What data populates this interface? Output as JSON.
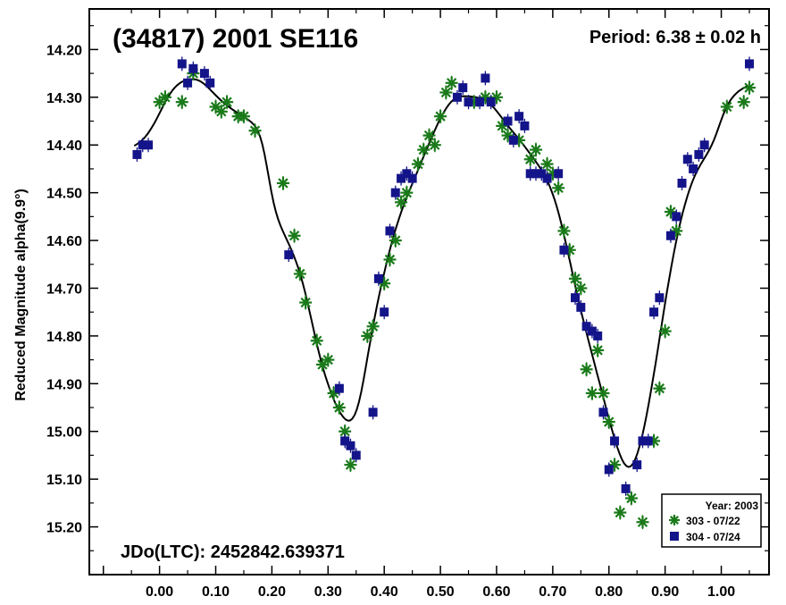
{
  "chart_data": {
    "type": "scatter",
    "title": "(34817) 2001 SE116",
    "period_label": "Period: 6.38 ± 0.02 h",
    "epoch_label": "JDo(LTC): 2452842.639371",
    "ylabel": "Reduced Magnitude alpha(9.9°)",
    "xlabel": "",
    "xlim": [
      -0.125,
      1.085
    ],
    "ylim": [
      14.115,
      15.3
    ],
    "y_inverted": true,
    "grid": false,
    "x_ticks": [
      "0.00",
      "0.10",
      "0.20",
      "0.30",
      "0.40",
      "0.50",
      "0.60",
      "0.70",
      "0.80",
      "0.90",
      "1.00"
    ],
    "y_ticks": [
      "14.20",
      "14.30",
      "14.40",
      "14.50",
      "14.60",
      "14.70",
      "14.80",
      "14.90",
      "15.00",
      "15.10",
      "15.20"
    ],
    "legend": {
      "title": "Year: 2003",
      "position": "bottom-right"
    },
    "colors": {
      "series_green": "#1a7a1a",
      "series_navy": "#14148a",
      "fit_curve": "#000000"
    },
    "series": [
      {
        "name": "303 - 07/22",
        "marker": "asterisk",
        "color": "#1a7a1a",
        "x": [
          0.0,
          0.01,
          0.04,
          0.06,
          0.1,
          0.11,
          0.12,
          0.14,
          0.15,
          0.17,
          0.22,
          0.24,
          0.25,
          0.26,
          0.28,
          0.29,
          0.3,
          0.31,
          0.32,
          0.33,
          0.34,
          0.37,
          0.38,
          0.4,
          0.41,
          0.42,
          0.43,
          0.44,
          0.46,
          0.47,
          0.48,
          0.49,
          0.5,
          0.51,
          0.52,
          0.56,
          0.58,
          0.6,
          0.61,
          0.62,
          0.64,
          0.66,
          0.67,
          0.69,
          0.7,
          0.71,
          0.72,
          0.73,
          0.74,
          0.75,
          0.76,
          0.77,
          0.78,
          0.79,
          0.8,
          0.81,
          0.82,
          0.84,
          0.86,
          0.88,
          0.89,
          0.9,
          0.91,
          0.92,
          1.01,
          1.04,
          1.05
        ],
        "y": [
          14.31,
          14.3,
          14.31,
          14.25,
          14.32,
          14.33,
          14.31,
          14.34,
          14.34,
          14.37,
          14.48,
          14.59,
          14.67,
          14.73,
          14.81,
          14.86,
          14.85,
          14.92,
          14.95,
          15.0,
          15.07,
          14.8,
          14.78,
          14.69,
          14.64,
          14.6,
          14.52,
          14.5,
          14.44,
          14.41,
          14.38,
          14.4,
          14.34,
          14.29,
          14.27,
          14.31,
          14.3,
          14.3,
          14.36,
          14.38,
          14.39,
          14.43,
          14.41,
          14.44,
          14.46,
          14.49,
          14.58,
          14.62,
          14.68,
          14.7,
          14.87,
          14.92,
          14.83,
          14.92,
          14.98,
          15.07,
          15.17,
          15.14,
          15.19,
          15.02,
          14.91,
          14.79,
          14.54,
          14.58,
          14.32,
          14.31,
          14.28
        ]
      },
      {
        "name": "304 - 07/24",
        "marker": "square",
        "color": "#14148a",
        "x": [
          -0.04,
          -0.03,
          -0.02,
          0.04,
          0.05,
          0.06,
          0.08,
          0.09,
          0.23,
          0.32,
          0.33,
          0.34,
          0.35,
          0.38,
          0.39,
          0.4,
          0.41,
          0.42,
          0.43,
          0.44,
          0.45,
          0.53,
          0.54,
          0.55,
          0.57,
          0.58,
          0.59,
          0.62,
          0.63,
          0.64,
          0.65,
          0.66,
          0.67,
          0.68,
          0.69,
          0.71,
          0.72,
          0.74,
          0.75,
          0.76,
          0.77,
          0.78,
          0.79,
          0.8,
          0.81,
          0.83,
          0.85,
          0.86,
          0.87,
          0.88,
          0.89,
          0.91,
          0.92,
          0.93,
          0.94,
          0.95,
          0.96,
          0.97,
          1.05
        ],
        "y": [
          14.42,
          14.4,
          14.4,
          14.23,
          14.27,
          14.24,
          14.25,
          14.27,
          14.63,
          14.91,
          15.02,
          15.03,
          15.05,
          14.96,
          14.68,
          14.75,
          14.58,
          14.5,
          14.47,
          14.46,
          14.47,
          14.3,
          14.28,
          14.31,
          14.31,
          14.26,
          14.31,
          14.35,
          14.39,
          14.34,
          14.36,
          14.46,
          14.46,
          14.46,
          14.47,
          14.46,
          14.62,
          14.72,
          14.74,
          14.78,
          14.79,
          14.8,
          14.96,
          15.08,
          15.02,
          15.12,
          15.07,
          15.02,
          15.02,
          14.75,
          14.72,
          14.59,
          14.55,
          14.48,
          14.43,
          14.45,
          14.42,
          14.4,
          14.23
        ]
      }
    ]
  }
}
